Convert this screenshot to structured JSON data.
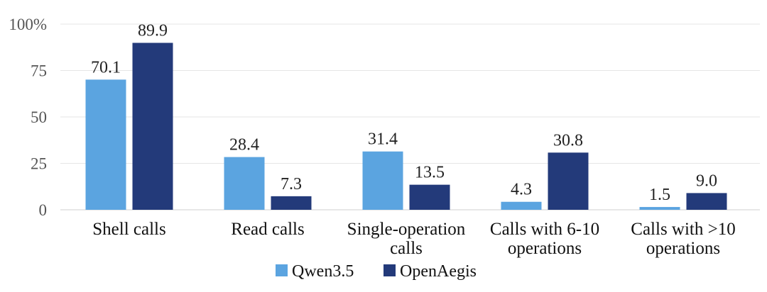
{
  "chart_data": {
    "type": "bar",
    "categories": [
      [
        "Shell calls"
      ],
      [
        "Read calls"
      ],
      [
        "Single-operation",
        "calls"
      ],
      [
        "Calls with 6-10",
        "operations"
      ],
      [
        "Calls with >10",
        "operations"
      ]
    ],
    "series": [
      {
        "name": "Qwen3.5",
        "color": "#5BA4E0",
        "values": [
          70.1,
          28.4,
          31.4,
          4.3,
          1.5
        ],
        "labels": [
          "70.1",
          "28.4",
          "31.4",
          "4.3",
          "1.5"
        ]
      },
      {
        "name": "OpenAegis",
        "color": "#233A7A",
        "values": [
          89.9,
          7.3,
          13.5,
          30.8,
          9.0
        ],
        "labels": [
          "89.9",
          "7.3",
          "13.5",
          "30.8",
          "9.0"
        ]
      }
    ],
    "yticks": [
      "0",
      "25",
      "50",
      "75",
      "100%"
    ],
    "ytick_values": [
      0,
      25,
      50,
      75,
      100
    ],
    "ylim": [
      0,
      100
    ],
    "grid": true,
    "legend_position": "bottom-center"
  }
}
